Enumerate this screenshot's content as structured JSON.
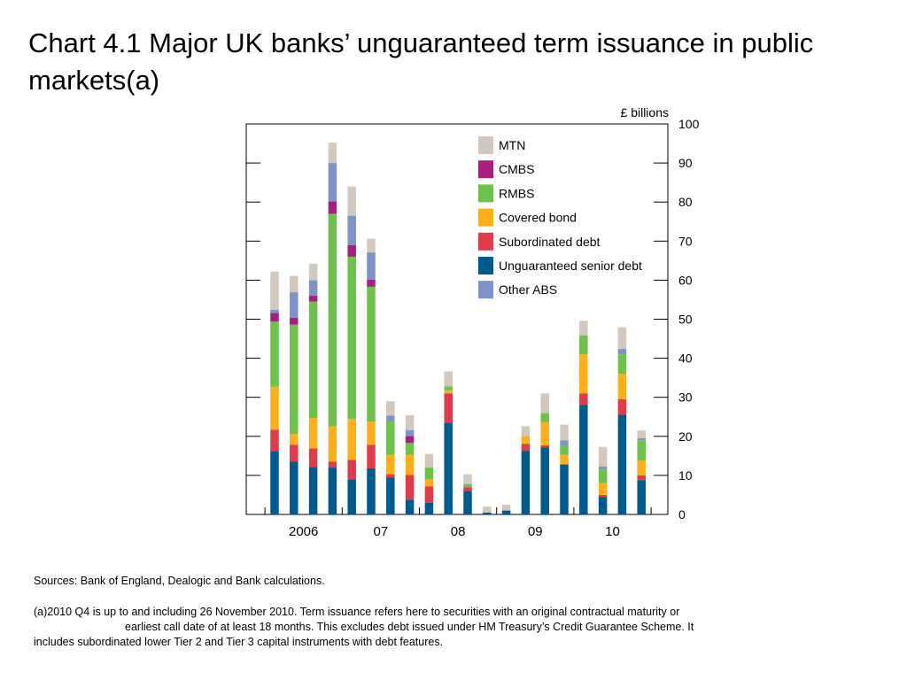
{
  "title": "Chart 4.1  Major UK banks’ unguaranteed term issuance in public markets(a)",
  "sources": "Sources:  Bank of England, Dealogic and Bank calculations.",
  "note_lines": [
    "(a)2010 Q4 is up to and including 26 November 2010.  Term issuance refers here to securities with an original contractual maturity or",
    "earliest call date of at least 18 months.  This excludes debt issued under HM Treasury’s Credit Guarantee Scheme.  It",
    "includes subordinated lower Tier 2 and Tier 3 capital instruments with debt features."
  ],
  "chart_data": {
    "type": "bar",
    "stacked": true,
    "unit_label": "£ billions",
    "ylim": [
      0,
      100
    ],
    "yticks": [
      0,
      10,
      20,
      30,
      40,
      50,
      60,
      70,
      80,
      90,
      100
    ],
    "x_labels": [
      "2006",
      "07",
      "08",
      "09",
      "10"
    ],
    "legend_position": "top-right",
    "series": [
      {
        "name": "Unguaranteed senior debt",
        "color": "#005A8C",
        "values": [
          16.2,
          13.5,
          12.2,
          12.0,
          9.0,
          11.8,
          9.5,
          3.8,
          3.0,
          23.5,
          6.0,
          0.5,
          1.0,
          16.3,
          17.2,
          12.8,
          28.0,
          4.5,
          25.5,
          8.8
        ]
      },
      {
        "name": "Subordinated debt",
        "color": "#DE3B4B",
        "values": [
          5.5,
          4.3,
          4.7,
          1.5,
          5.0,
          6.0,
          0.8,
          6.3,
          4.2,
          7.5,
          1.0,
          0,
          0,
          1.8,
          0.5,
          0,
          3.0,
          0.5,
          4.0,
          1.2
        ]
      },
      {
        "name": "Covered bond",
        "color": "#FBAF1B",
        "values": [
          11.0,
          2.8,
          7.8,
          9.0,
          10.5,
          6.0,
          5.0,
          5.2,
          1.8,
          0.8,
          0,
          0,
          0,
          2.0,
          6.0,
          2.5,
          10.0,
          3.0,
          6.5,
          3.8
        ]
      },
      {
        "name": "RMBS",
        "color": "#6CC24A",
        "values": [
          16.7,
          28.0,
          29.8,
          54.5,
          41.5,
          34.5,
          8.5,
          3.0,
          3.0,
          1.0,
          0.8,
          0,
          0,
          0,
          2.3,
          2.2,
          4.8,
          3.5,
          5.0,
          5.2
        ]
      },
      {
        "name": "CMBS",
        "color": "#A8207F",
        "values": [
          2.2,
          1.8,
          1.5,
          3.2,
          3.0,
          1.8,
          0,
          1.8,
          0,
          0,
          0,
          0,
          0,
          0,
          0,
          0,
          0,
          0,
          0,
          0
        ]
      },
      {
        "name": "Other ABS",
        "color": "#7D94C8",
        "values": [
          0.8,
          6.5,
          4.0,
          9.8,
          7.5,
          7.0,
          1.5,
          1.5,
          0,
          0,
          0,
          0,
          0,
          0,
          0,
          1.5,
          0,
          0.8,
          1.4,
          0.5
        ]
      },
      {
        "name": "MTN",
        "color": "#D3C8BD",
        "values": [
          9.8,
          4.2,
          4.2,
          5.2,
          7.5,
          3.5,
          3.7,
          3.8,
          3.5,
          3.8,
          2.5,
          1.5,
          1.5,
          2.5,
          5.0,
          4.0,
          3.8,
          5.0,
          5.5,
          2.0
        ]
      }
    ],
    "legend_order": [
      "MTN",
      "CMBS",
      "RMBS",
      "Covered bond",
      "Subordinated debt",
      "Unguaranteed senior debt",
      "Other ABS"
    ]
  }
}
